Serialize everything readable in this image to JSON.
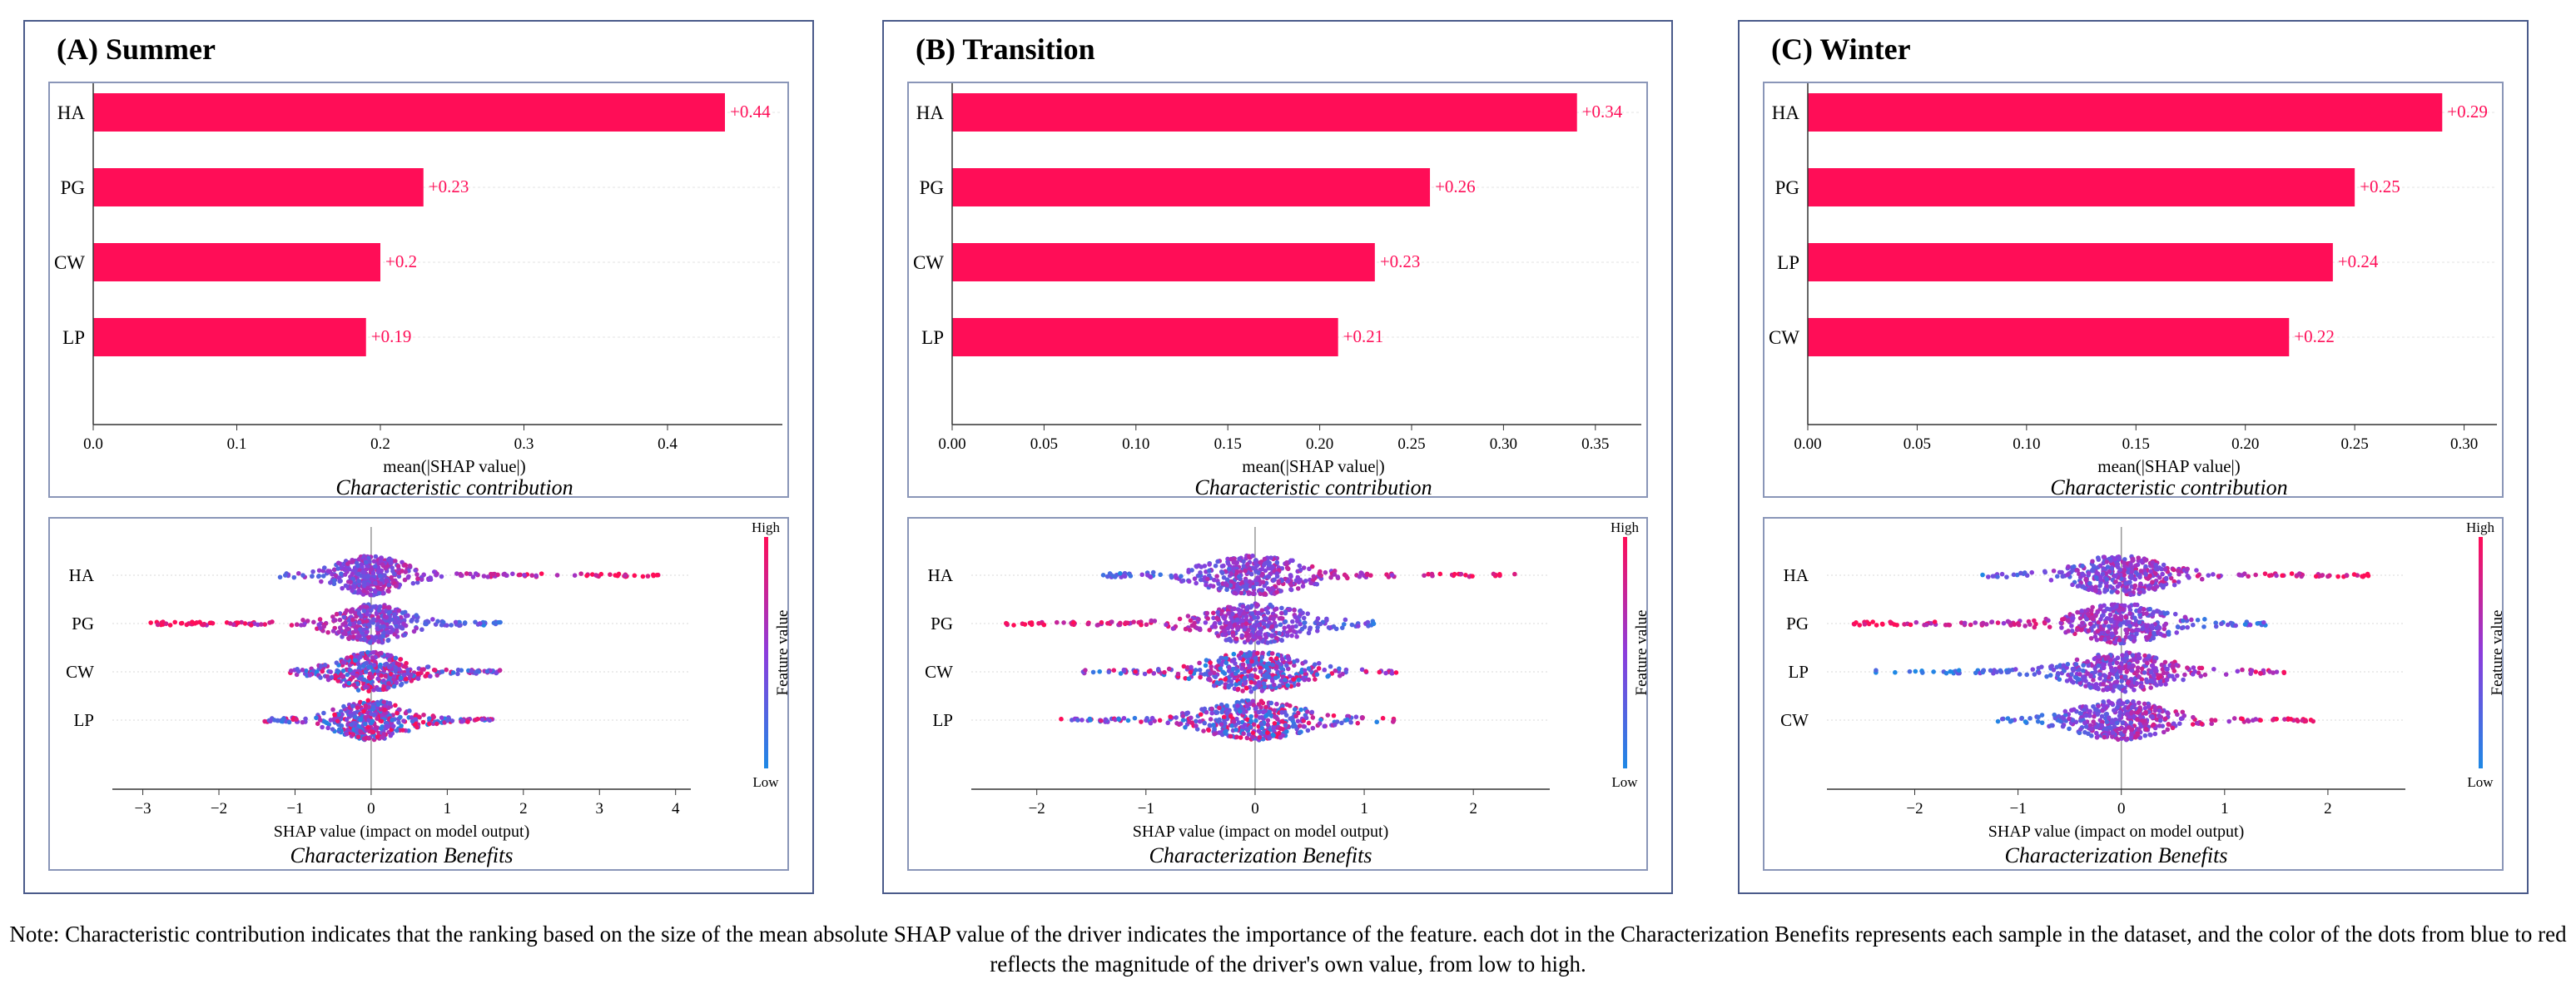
{
  "note": "Note: Characteristic contribution indicates that the ranking based on the size of the mean absolute SHAP value of the driver indicates the importance of the feature. each dot in the Characterization Benefits represents each sample in the dataset, and the color of the dots from blue to red reflects the magnitude of the driver's own value, from low to high.",
  "colors": {
    "bar": "#ff0d57",
    "low": "#1e88e5",
    "high": "#ff0d57",
    "grid": "#cccccc"
  },
  "chart_data": [
    {
      "panel": "A",
      "title": "(A) Summer",
      "bar": {
        "type": "bar",
        "orientation": "horizontal",
        "categories": [
          "HA",
          "PG",
          "CW",
          "LP"
        ],
        "values": [
          0.44,
          0.23,
          0.2,
          0.19
        ],
        "value_labels": [
          "+0.44",
          "+0.23",
          "+0.2",
          "+0.19"
        ],
        "xlim": [
          0,
          0.48
        ],
        "ticks": [
          0,
          0.1,
          0.2,
          0.3,
          0.4
        ],
        "tick_labels": [
          "0.0",
          "0.1",
          "0.2",
          "0.3",
          "0.4"
        ],
        "xlabel": "mean(|SHAP value|)",
        "caption": "Characteristic contribution"
      },
      "beeswarm": {
        "type": "scatter",
        "features": [
          "HA",
          "PG",
          "CW",
          "LP"
        ],
        "ranges": [
          [
            -1.2,
            3.8
          ],
          [
            -3.0,
            1.7
          ],
          [
            -1.1,
            1.7
          ],
          [
            -1.4,
            1.6
          ]
        ],
        "color_trend": [
          "up",
          "down",
          "mixed",
          "mixed"
        ],
        "xlim": [
          -3.4,
          4.2
        ],
        "ticks": [
          -3,
          -2,
          -1,
          0,
          1,
          2,
          3,
          4
        ],
        "tick_labels": [
          "−3",
          "−2",
          "−1",
          "0",
          "1",
          "2",
          "3",
          "4"
        ],
        "xlabel": "SHAP value (impact on model output)",
        "colorbar_label": "Feature value",
        "high": "High",
        "low": "Low",
        "caption": "Characterization Benefits"
      }
    },
    {
      "panel": "B",
      "title": "(B) Transition",
      "bar": {
        "type": "bar",
        "orientation": "horizontal",
        "categories": [
          "HA",
          "PG",
          "CW",
          "LP"
        ],
        "values": [
          0.34,
          0.26,
          0.23,
          0.21
        ],
        "value_labels": [
          "+0.34",
          "+0.26",
          "+0.23",
          "+0.21"
        ],
        "xlim": [
          0,
          0.375
        ],
        "ticks": [
          0,
          0.05,
          0.1,
          0.15,
          0.2,
          0.25,
          0.3,
          0.35
        ],
        "tick_labels": [
          "0.00",
          "0.05",
          "0.10",
          "0.15",
          "0.20",
          "0.25",
          "0.30",
          "0.35"
        ],
        "xlabel": "mean(|SHAP value|)",
        "caption": "Characteristic contribution"
      },
      "beeswarm": {
        "type": "scatter",
        "features": [
          "HA",
          "PG",
          "CW",
          "LP"
        ],
        "ranges": [
          [
            -1.4,
            2.4
          ],
          [
            -2.3,
            1.1
          ],
          [
            -1.6,
            1.3
          ],
          [
            -1.8,
            1.3
          ]
        ],
        "color_trend": [
          "up",
          "down",
          "mixed",
          "mixed"
        ],
        "xlim": [
          -2.6,
          2.7
        ],
        "ticks": [
          -2,
          -1,
          0,
          1,
          2
        ],
        "tick_labels": [
          "−2",
          "−1",
          "0",
          "1",
          "2"
        ],
        "xlabel": "SHAP value (impact on model output)",
        "colorbar_label": "Feature value",
        "high": "High",
        "low": "Low",
        "caption": "Characterization Benefits"
      }
    },
    {
      "panel": "C",
      "title": "(C) Winter",
      "bar": {
        "type": "bar",
        "orientation": "horizontal",
        "categories": [
          "HA",
          "PG",
          "LP",
          "CW"
        ],
        "values": [
          0.29,
          0.25,
          0.24,
          0.22
        ],
        "value_labels": [
          "+0.29",
          "+0.25",
          "+0.24",
          "+0.22"
        ],
        "xlim": [
          0,
          0.315
        ],
        "ticks": [
          0,
          0.05,
          0.1,
          0.15,
          0.2,
          0.25,
          0.3
        ],
        "tick_labels": [
          "0.00",
          "0.05",
          "0.10",
          "0.15",
          "0.20",
          "0.25",
          "0.30"
        ],
        "xlabel": "mean(|SHAP value|)",
        "caption": "Characteristic contribution"
      },
      "beeswarm": {
        "type": "scatter",
        "features": [
          "HA",
          "PG",
          "LP",
          "CW"
        ],
        "ranges": [
          [
            -1.4,
            2.4
          ],
          [
            -2.6,
            1.4
          ],
          [
            -2.4,
            1.6
          ],
          [
            -1.2,
            1.9
          ]
        ],
        "color_trend": [
          "up",
          "down",
          "up",
          "up"
        ],
        "xlim": [
          -2.85,
          2.75
        ],
        "ticks": [
          -2,
          -1,
          0,
          1,
          2
        ],
        "tick_labels": [
          "−2",
          "−1",
          "0",
          "1",
          "2"
        ],
        "xlabel": "SHAP value (impact on model output)",
        "colorbar_label": "Feature value",
        "high": "High",
        "low": "Low",
        "caption": "Characterization Benefits"
      }
    }
  ]
}
